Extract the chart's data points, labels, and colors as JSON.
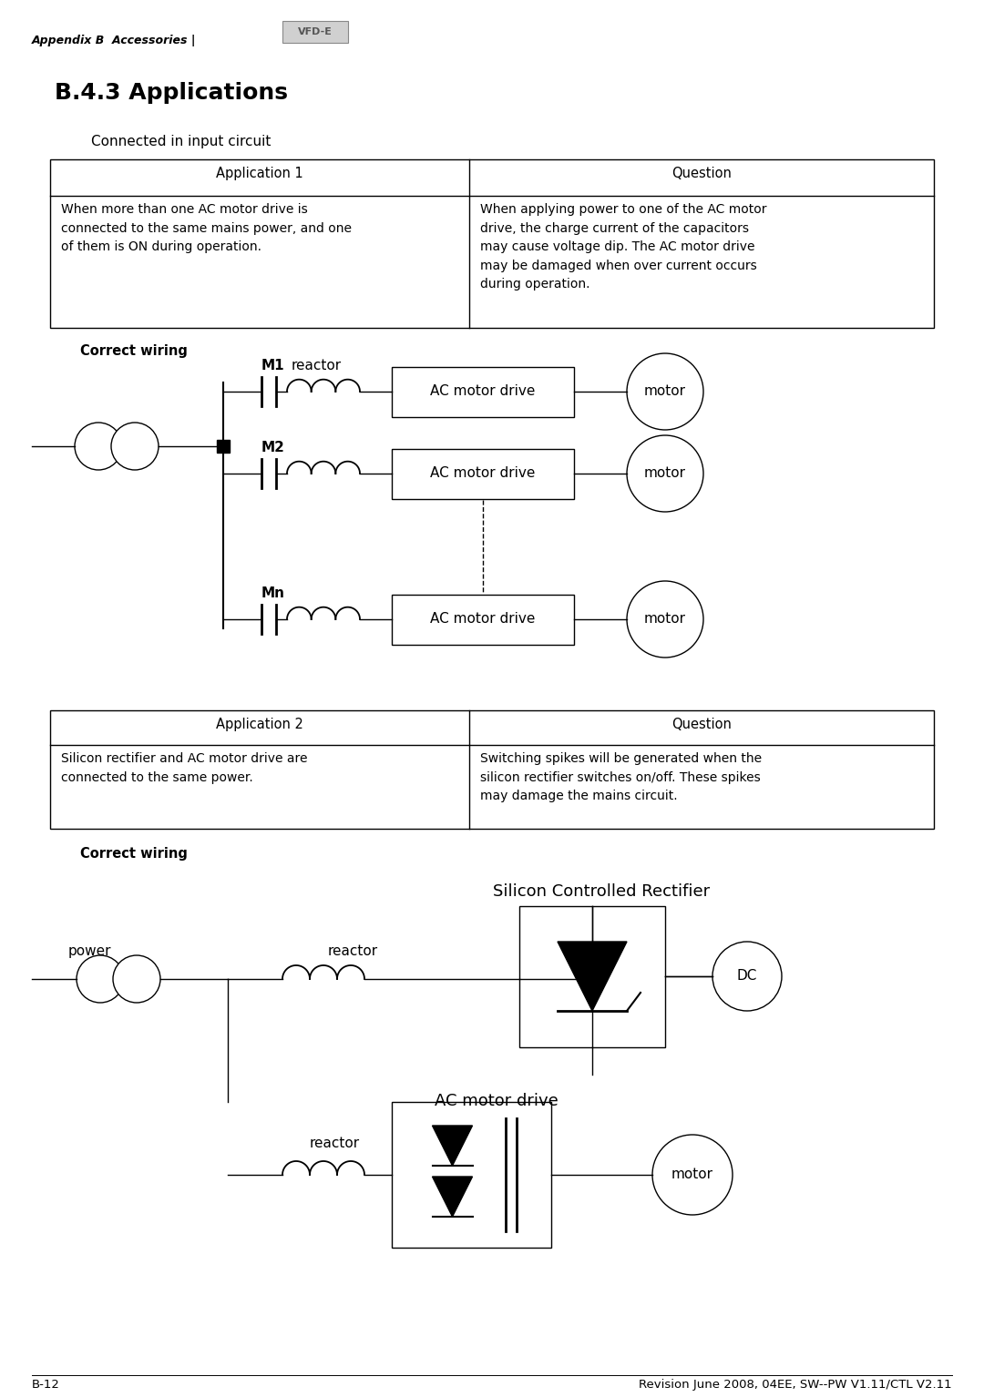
{
  "page_title": "B.4.3 Applications",
  "header_text": "Appendix B  Accessories |",
  "vfd_label": "VFD-E",
  "subtitle1": "Connected in input circuit",
  "subtitle2": "Correct wiring",
  "table1_headers": [
    "Application 1",
    "Question"
  ],
  "table1_row_left": "When more than one AC motor drive is\nconnected to the same mains power, and one\nof them is ON during operation.",
  "table1_row_right": "When applying power to one of the AC motor\ndrive, the charge current of the capacitors\nmay cause voltage dip. The AC motor drive\nmay be damaged when over current occurs\nduring operation.",
  "table2_headers": [
    "Application 2",
    "Question"
  ],
  "table2_row_left": "Silicon rectifier and AC motor drive are\nconnected to the same power.",
  "table2_row_right": "Switching spikes will be generated when the\nsilicon rectifier switches on/off. These spikes\nmay damage the mains circuit.",
  "footer_left": "B-12",
  "footer_right": "Revision June 2008, 04EE, SW--PW V1.11/CTL V2.11",
  "bg_color": "#ffffff",
  "text_color": "#000000",
  "correct_wiring2": "Correct wiring",
  "scr_title": "Silicon Controlled Rectifier",
  "ac_motor_drive_label": "AC motor drive"
}
